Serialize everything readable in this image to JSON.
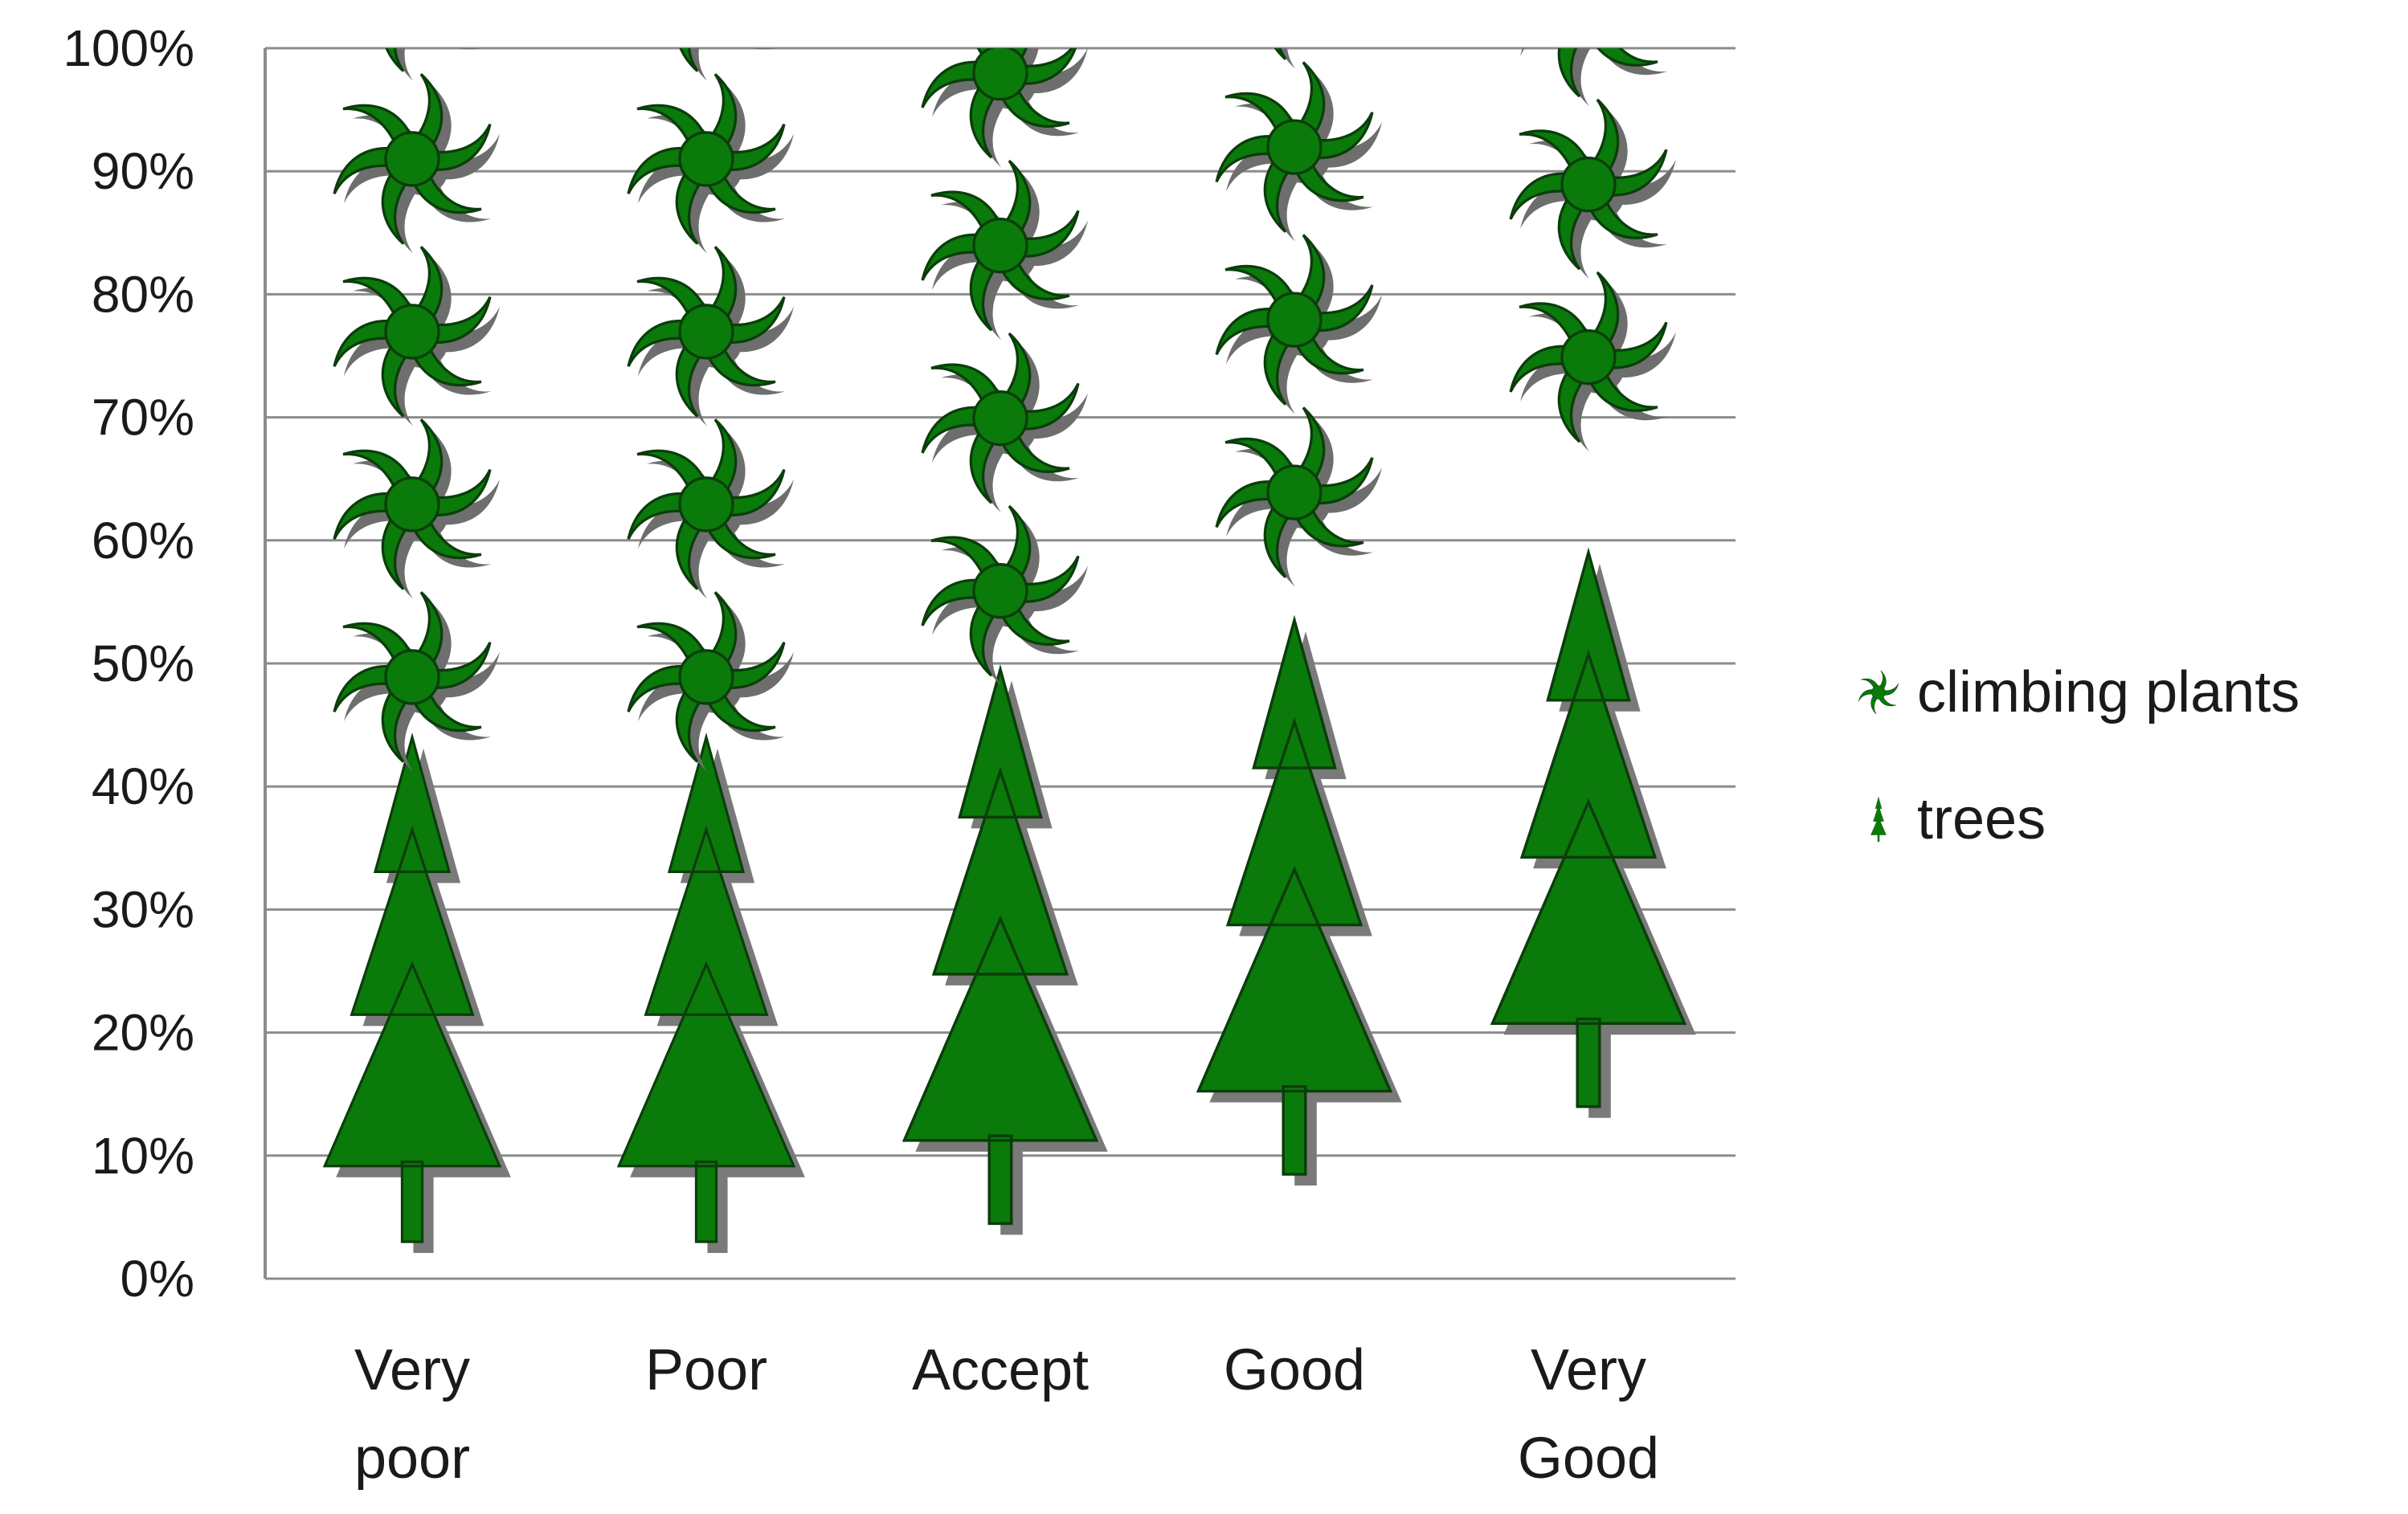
{
  "chart_data": {
    "type": "bar",
    "stacked": true,
    "pictograph": true,
    "categories": [
      [
        "Very",
        "poor"
      ],
      [
        "Poor"
      ],
      [
        "Accept"
      ],
      [
        "Good"
      ],
      [
        "Very",
        "Good"
      ]
    ],
    "series": [
      {
        "name": "trees",
        "icon": "tree-icon",
        "color": "#0a7a0a",
        "values": [
          0.44,
          0.44,
          0.51,
          0.59,
          0.7
        ]
      },
      {
        "name": "climbing plants",
        "icon": "climbing-plant-icon",
        "color": "#0a7a0a",
        "values": [
          0.56,
          0.56,
          0.49,
          0.41,
          0.3
        ]
      }
    ],
    "yticks": [
      "0%",
      "10%",
      "20%",
      "30%",
      "40%",
      "50%",
      "60%",
      "70%",
      "80%",
      "90%",
      "100%"
    ],
    "ylim": [
      0,
      1
    ],
    "grid": true,
    "legend_position": "right",
    "title": "",
    "xlabel": "",
    "ylabel": ""
  }
}
